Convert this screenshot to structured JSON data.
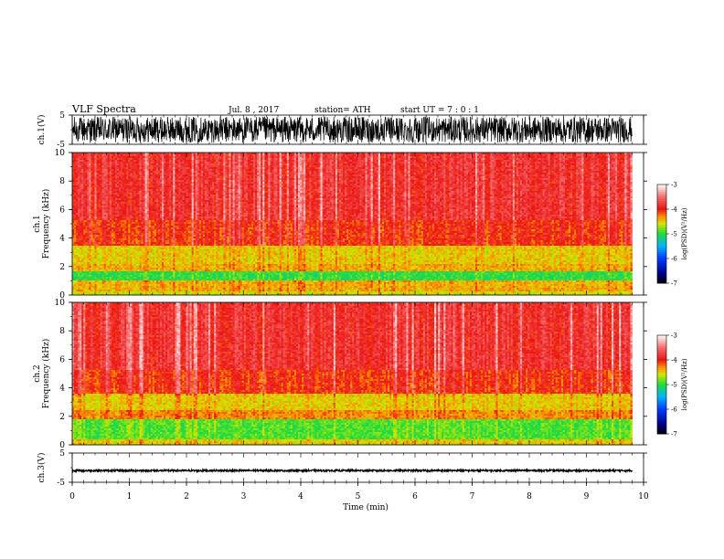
{
  "header": {
    "title": "VLF  Spectra",
    "date": "Jul.  8  , 2017",
    "station": "station= ATH",
    "start": "start  UT  =   7 : 0  : 1"
  },
  "chart_data": [
    {
      "type": "line",
      "name": "ch1-waveform",
      "ylabel": "ch.1(V)",
      "ylim": [
        -5,
        5
      ],
      "yticks": [
        "5",
        "-5"
      ],
      "xlim": [
        0,
        10
      ],
      "data_extent_min": 9.8,
      "amplitude_v": 4.5
    },
    {
      "type": "heatmap",
      "name": "ch1-spectrogram",
      "ylabel": "ch.1\nFrequency  (kHz)",
      "ylim": [
        0,
        10
      ],
      "yticks": [
        "0",
        "2",
        "4",
        "6",
        "8",
        "10"
      ],
      "xlim": [
        0,
        10
      ],
      "data_extent_min": 9.8,
      "colorbar": {
        "label": "log(PSD)(V²/Hz)",
        "ticks": [
          "-3",
          "-4",
          "-5",
          "-6",
          "-7"
        ],
        "range": [
          -7,
          -3
        ]
      },
      "bands_khz": [
        {
          "from": 0,
          "to": 0.3,
          "level": -4.6
        },
        {
          "from": 0.3,
          "to": 1.0,
          "level": -4.4
        },
        {
          "from": 1.0,
          "to": 1.7,
          "level": -5.0
        },
        {
          "from": 1.7,
          "to": 2.2,
          "level": -4.4
        },
        {
          "from": 2.2,
          "to": 3.5,
          "level": -4.5
        },
        {
          "from": 3.5,
          "to": 5.2,
          "level": -4.05
        },
        {
          "from": 5.2,
          "to": 10.0,
          "level": -3.85
        }
      ]
    },
    {
      "type": "heatmap",
      "name": "ch2-spectrogram",
      "ylabel": "ch.2\nFrequency  (kHz)",
      "ylim": [
        0,
        10
      ],
      "yticks": [
        "0",
        "2",
        "4",
        "6",
        "8",
        "10"
      ],
      "xlim": [
        0,
        10
      ],
      "data_extent_min": 9.8,
      "colorbar": {
        "label": "log(PSD)(V²/Hz)",
        "ticks": [
          "-3",
          "-4",
          "-5",
          "-6",
          "-7"
        ],
        "range": [
          -7,
          -3
        ]
      },
      "bands_khz": [
        {
          "from": 0,
          "to": 0.4,
          "level": -4.5
        },
        {
          "from": 0.4,
          "to": 1.8,
          "level": -4.9
        },
        {
          "from": 1.8,
          "to": 2.4,
          "level": -4.3
        },
        {
          "from": 2.4,
          "to": 3.6,
          "level": -4.5
        },
        {
          "from": 3.6,
          "to": 5.3,
          "level": -4.05
        },
        {
          "from": 5.3,
          "to": 10.0,
          "level": -3.85
        }
      ]
    },
    {
      "type": "line",
      "name": "ch3-waveform",
      "ylabel": "ch.3(V)",
      "ylim": [
        -5,
        5
      ],
      "yticks": [
        "5",
        "-5"
      ],
      "xlim": [
        0,
        10
      ],
      "data_extent_min": 9.8,
      "baseline_v": -1.0,
      "amplitude_v": 0.3
    }
  ],
  "x_axis": {
    "label": "Time  (min)",
    "range": [
      0,
      10
    ],
    "ticks": [
      "0",
      "1",
      "2",
      "3",
      "4",
      "5",
      "6",
      "7",
      "8",
      "9",
      "10"
    ]
  }
}
